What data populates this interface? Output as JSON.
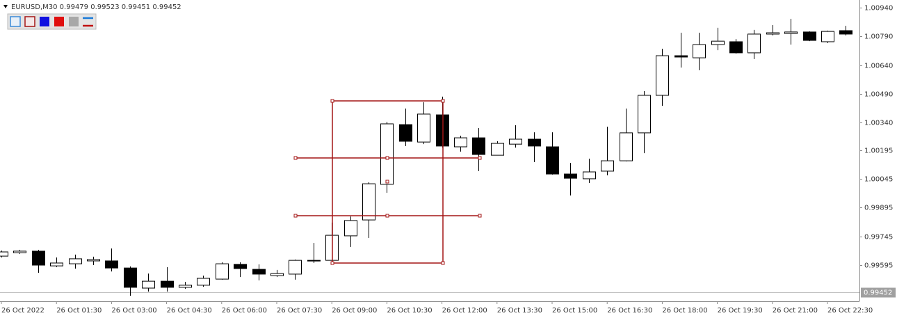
{
  "chart_data": {
    "type": "candlestick",
    "title": "EURUSD,M30",
    "header_values": [
      0.99479,
      0.99523,
      0.99451,
      0.99452
    ],
    "categories": [
      "26 Oct 2022",
      null,
      null,
      "26 Oct 01:30",
      null,
      null,
      "26 Oct 03:00",
      null,
      null,
      "26 Oct 04:30",
      null,
      null,
      "26 Oct 06:00",
      null,
      null,
      "26 Oct 07:30",
      null,
      null,
      "26 Oct 09:00",
      null,
      null,
      "26 Oct 10:30",
      null,
      null,
      "26 Oct 12:00",
      null,
      null,
      "26 Oct 13:30",
      null,
      null,
      "26 Oct 15:00",
      null,
      null,
      "26 Oct 16:30",
      null,
      null,
      "26 Oct 18:00",
      null,
      null,
      "26 Oct 19:30",
      null,
      null,
      "26 Oct 21:00",
      null,
      null,
      "26 Oct 22:30",
      null
    ],
    "open": [
      0.99642,
      0.9966,
      0.99668,
      0.99591,
      0.99602,
      0.99617,
      0.99617,
      0.9958,
      0.99475,
      0.99511,
      0.99479,
      0.9949,
      0.99522,
      0.99599,
      0.99573,
      0.9954,
      0.99548,
      0.99617,
      0.9962,
      0.99748,
      0.99831,
      1.00017,
      1.00329,
      1.00238,
      1.0038,
      1.00213,
      1.0026,
      1.00169,
      1.00227,
      1.00253,
      1.00213,
      1.00071,
      1.00046,
      1.00086,
      1.0014,
      1.00286,
      1.00482,
      1.00689,
      1.00678,
      1.00747,
      1.00762,
      1.00704,
      1.00802,
      1.00805,
      1.00813,
      1.00762,
      1.0082
    ],
    "high": [
      0.99671,
      0.99675,
      0.99675,
      0.99635,
      0.9965,
      0.99639,
      0.99682,
      0.99588,
      0.99551,
      0.99584,
      0.99508,
      0.9954,
      0.9961,
      0.9961,
      0.99599,
      0.9957,
      0.99624,
      0.99711,
      0.99817,
      0.99849,
      1.00028,
      1.00344,
      1.00413,
      1.00446,
      1.00475,
      1.00271,
      1.00311,
      1.00242,
      1.00326,
      1.00289,
      1.00289,
      1.00129,
      1.00151,
      1.00318,
      1.00413,
      1.00504,
      1.00725,
      1.00809,
      1.00809,
      1.00835,
      1.00776,
      1.00824,
      1.00849,
      1.00882,
      1.00816,
      1.0082,
      1.00845
    ],
    "low": [
      0.99635,
      0.99653,
      0.99555,
      0.99584,
      0.99577,
      0.99595,
      0.99562,
      0.99435,
      0.99457,
      0.99457,
      0.99471,
      0.99482,
      0.99519,
      0.99533,
      0.99515,
      0.99533,
      0.99519,
      0.99606,
      0.99606,
      0.9969,
      0.99737,
      0.99973,
      1.00217,
      1.00227,
      1.00209,
      1.00188,
      1.00086,
      1.00169,
      1.00209,
      1.00133,
      1.00068,
      0.99959,
      1.00024,
      1.00064,
      1.00137,
      1.0018,
      1.00427,
      1.00627,
      1.00613,
      1.00718,
      1.007,
      1.00671,
      1.00795,
      1.00747,
      1.00765,
      1.00755,
      1.00795
    ],
    "close": [
      0.99664,
      0.99668,
      0.99595,
      0.99606,
      0.99628,
      0.99624,
      0.9958,
      0.99479,
      0.99511,
      0.99479,
      0.9949,
      0.99526,
      0.99602,
      0.99577,
      0.99548,
      0.99551,
      0.9962,
      0.9962,
      0.99751,
      0.99828,
      1.0002,
      1.00333,
      1.00242,
      1.00384,
      1.00217,
      1.0026,
      1.00173,
      1.00231,
      1.00253,
      1.00217,
      1.00071,
      1.00049,
      1.00082,
      1.0014,
      1.00286,
      1.00482,
      1.00689,
      1.00682,
      1.00747,
      1.00765,
      1.00704,
      1.00802,
      1.00809,
      1.00813,
      1.00769,
      1.00816,
      1.00802
    ],
    "up_color": "#ffffff",
    "down_color": "#000000",
    "ylim": [
      0.99406,
      1.0098
    ],
    "yticks": [
      {
        "value": 1.0094,
        "label": "1.00940"
      },
      {
        "value": 1.0079,
        "label": "1.00790"
      },
      {
        "value": 1.0064,
        "label": "1.00640"
      },
      {
        "value": 1.0049,
        "label": "1.00490"
      },
      {
        "value": 1.0034,
        "label": "1.00340"
      },
      1.00195,
      1.00045,
      0.99895,
      0.99745,
      0.99595
    ],
    "current_price": 0.99452
  }
}
